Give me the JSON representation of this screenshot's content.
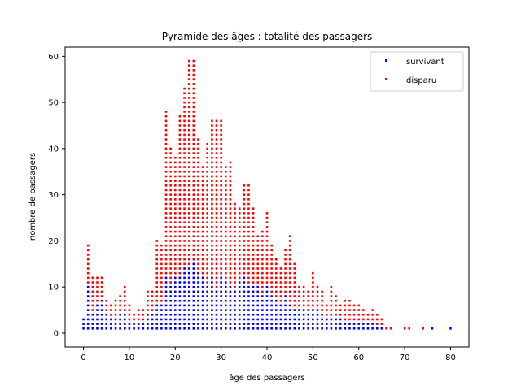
{
  "chart_data": {
    "type": "scatter",
    "title": "Pyramide des âges : totalité des passagers",
    "xlabel": "âge des passagers",
    "ylabel": "nombre de passagers",
    "xlim": [
      -4,
      84
    ],
    "ylim": [
      -3,
      62
    ],
    "xticks": [
      "0",
      "10",
      "20",
      "30",
      "40",
      "50",
      "60",
      "70",
      "80"
    ],
    "yticks": [
      "0",
      "10",
      "20",
      "30",
      "40",
      "50",
      "60"
    ],
    "grid": false,
    "legend_position": "top-right",
    "marker": "stacked unit dots (one dot per passenger)",
    "x": [
      0,
      1,
      2,
      3,
      4,
      5,
      6,
      7,
      8,
      9,
      10,
      11,
      12,
      13,
      14,
      15,
      16,
      17,
      18,
      19,
      20,
      21,
      22,
      23,
      24,
      25,
      26,
      27,
      28,
      29,
      30,
      31,
      32,
      33,
      34,
      35,
      36,
      37,
      38,
      39,
      40,
      41,
      42,
      43,
      44,
      45,
      46,
      47,
      48,
      49,
      50,
      51,
      52,
      53,
      54,
      55,
      56,
      57,
      58,
      59,
      60,
      61,
      62,
      63,
      64,
      65,
      66,
      67,
      70,
      71,
      74,
      76,
      80
    ],
    "series": [
      {
        "name": "survivant",
        "color": "#0000ff",
        "values": [
          3,
          10,
          4,
          6,
          7,
          4,
          3,
          3,
          4,
          4,
          2,
          2,
          2,
          2,
          4,
          4,
          6,
          6,
          12,
          10,
          12,
          12,
          14,
          14,
          15,
          13,
          12,
          10,
          12,
          9,
          12,
          11,
          10,
          9,
          11,
          12,
          10,
          10,
          10,
          8,
          10,
          8,
          7,
          6,
          8,
          6,
          5,
          5,
          5,
          4,
          5,
          5,
          4,
          3,
          3,
          3,
          3,
          2,
          2,
          2,
          2,
          2,
          2,
          2,
          1,
          1,
          0,
          0,
          0,
          0,
          0,
          1,
          1
        ]
      },
      {
        "name": "disparu",
        "color": "#ff0000",
        "values": [
          0,
          9,
          8,
          6,
          5,
          3,
          3,
          4,
          4,
          6,
          4,
          2,
          3,
          3,
          5,
          5,
          14,
          13,
          36,
          30,
          26,
          35,
          39,
          45,
          44,
          29,
          24,
          31,
          34,
          37,
          34,
          25,
          27,
          19,
          16,
          20,
          22,
          17,
          11,
          14,
          16,
          11,
          9,
          8,
          10,
          15,
          10,
          5,
          5,
          5,
          8,
          5,
          5,
          3,
          7,
          5,
          3,
          5,
          5,
          4,
          4,
          3,
          2,
          3,
          3,
          2,
          1,
          1,
          1,
          1,
          1,
          0,
          0
        ]
      }
    ]
  }
}
